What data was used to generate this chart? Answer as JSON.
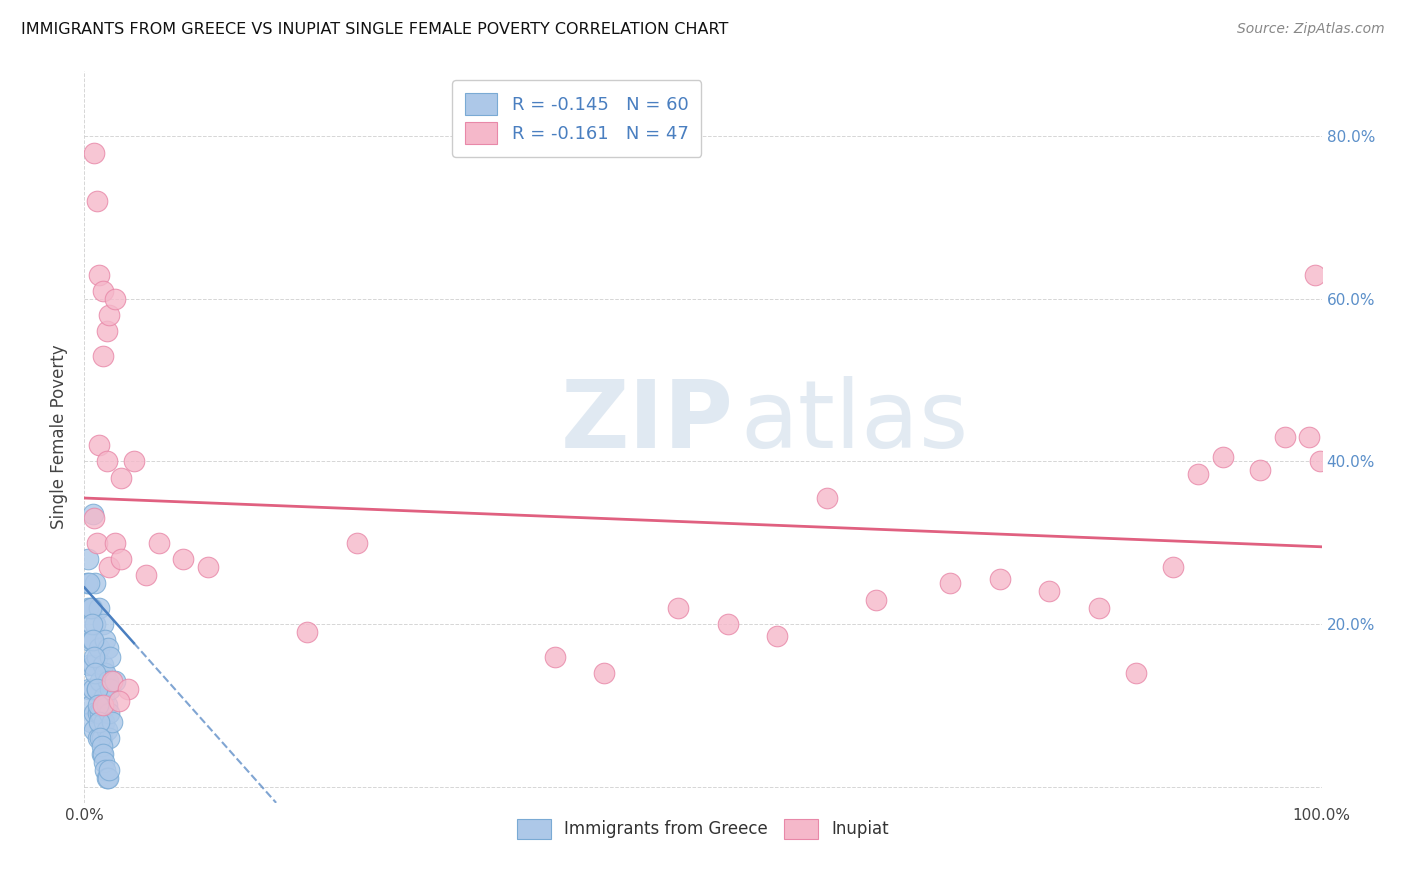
{
  "title": "IMMIGRANTS FROM GREECE VS INUPIAT SINGLE FEMALE POVERTY CORRELATION CHART",
  "source": "Source: ZipAtlas.com",
  "ylabel": "Single Female Poverty",
  "xlim": [
    0,
    1.0
  ],
  "ylim": [
    -0.02,
    0.88
  ],
  "xtick_positions": [
    0.0,
    1.0
  ],
  "xticklabels": [
    "0.0%",
    "100.0%"
  ],
  "ytick_positions": [
    0.0,
    0.2,
    0.4,
    0.6,
    0.8
  ],
  "yticklabels_right": [
    "",
    "20.0%",
    "40.0%",
    "60.0%",
    "80.0%"
  ],
  "legend_r1": "R = -0.145",
  "legend_n1": "N = 60",
  "legend_r2": "R = -0.161",
  "legend_n2": "N = 47",
  "series1_label": "Immigrants from Greece",
  "series2_label": "Inupiat",
  "series1_color": "#adc8e8",
  "series2_color": "#f5b8ca",
  "series1_edge": "#7aaad4",
  "series2_edge": "#e888a8",
  "trend1_color": "#4a7fc0",
  "trend2_color": "#e06080",
  "watermark_zip": "ZIP",
  "watermark_atlas": "atlas",
  "blue_x": [
    0.002,
    0.003,
    0.003,
    0.004,
    0.004,
    0.005,
    0.005,
    0.006,
    0.006,
    0.007,
    0.007,
    0.008,
    0.008,
    0.009,
    0.009,
    0.01,
    0.01,
    0.011,
    0.011,
    0.012,
    0.012,
    0.013,
    0.013,
    0.014,
    0.014,
    0.015,
    0.015,
    0.016,
    0.016,
    0.017,
    0.017,
    0.018,
    0.018,
    0.019,
    0.019,
    0.02,
    0.02,
    0.021,
    0.021,
    0.022,
    0.003,
    0.004,
    0.005,
    0.006,
    0.007,
    0.008,
    0.009,
    0.01,
    0.011,
    0.012,
    0.013,
    0.014,
    0.015,
    0.016,
    0.017,
    0.018,
    0.019,
    0.02,
    0.007,
    0.025
  ],
  "blue_y": [
    0.25,
    0.22,
    0.18,
    0.15,
    0.12,
    0.1,
    0.08,
    0.22,
    0.18,
    0.15,
    0.12,
    0.09,
    0.07,
    0.25,
    0.2,
    0.16,
    0.12,
    0.09,
    0.06,
    0.22,
    0.17,
    0.13,
    0.09,
    0.06,
    0.04,
    0.2,
    0.15,
    0.11,
    0.08,
    0.18,
    0.14,
    0.1,
    0.07,
    0.17,
    0.13,
    0.09,
    0.06,
    0.16,
    0.12,
    0.08,
    0.28,
    0.25,
    0.22,
    0.2,
    0.18,
    0.16,
    0.14,
    0.12,
    0.1,
    0.08,
    0.06,
    0.05,
    0.04,
    0.03,
    0.02,
    0.01,
    0.01,
    0.02,
    0.335,
    0.13
  ],
  "pink_x": [
    0.008,
    0.01,
    0.012,
    0.015,
    0.018,
    0.02,
    0.025,
    0.008,
    0.01,
    0.015,
    0.02,
    0.025,
    0.03,
    0.05,
    0.06,
    0.08,
    0.1,
    0.18,
    0.22,
    0.38,
    0.42,
    0.48,
    0.52,
    0.56,
    0.6,
    0.64,
    0.7,
    0.74,
    0.78,
    0.82,
    0.85,
    0.88,
    0.9,
    0.92,
    0.95,
    0.97,
    0.99,
    0.995,
    0.999,
    0.012,
    0.018,
    0.03,
    0.04,
    0.015,
    0.022,
    0.035,
    0.028
  ],
  "pink_y": [
    0.78,
    0.72,
    0.63,
    0.61,
    0.56,
    0.58,
    0.6,
    0.33,
    0.3,
    0.53,
    0.27,
    0.3,
    0.28,
    0.26,
    0.3,
    0.28,
    0.27,
    0.19,
    0.3,
    0.16,
    0.14,
    0.22,
    0.2,
    0.185,
    0.355,
    0.23,
    0.25,
    0.255,
    0.24,
    0.22,
    0.14,
    0.27,
    0.385,
    0.405,
    0.39,
    0.43,
    0.43,
    0.63,
    0.4,
    0.42,
    0.4,
    0.38,
    0.4,
    0.1,
    0.13,
    0.12,
    0.105
  ],
  "pink_trend_x0": 0.0,
  "pink_trend_y0": 0.355,
  "pink_trend_x1": 1.0,
  "pink_trend_y1": 0.295,
  "blue_trend_x0": 0.0,
  "blue_trend_y0": 0.245,
  "blue_trend_x1": 0.155,
  "blue_trend_y1": -0.02
}
